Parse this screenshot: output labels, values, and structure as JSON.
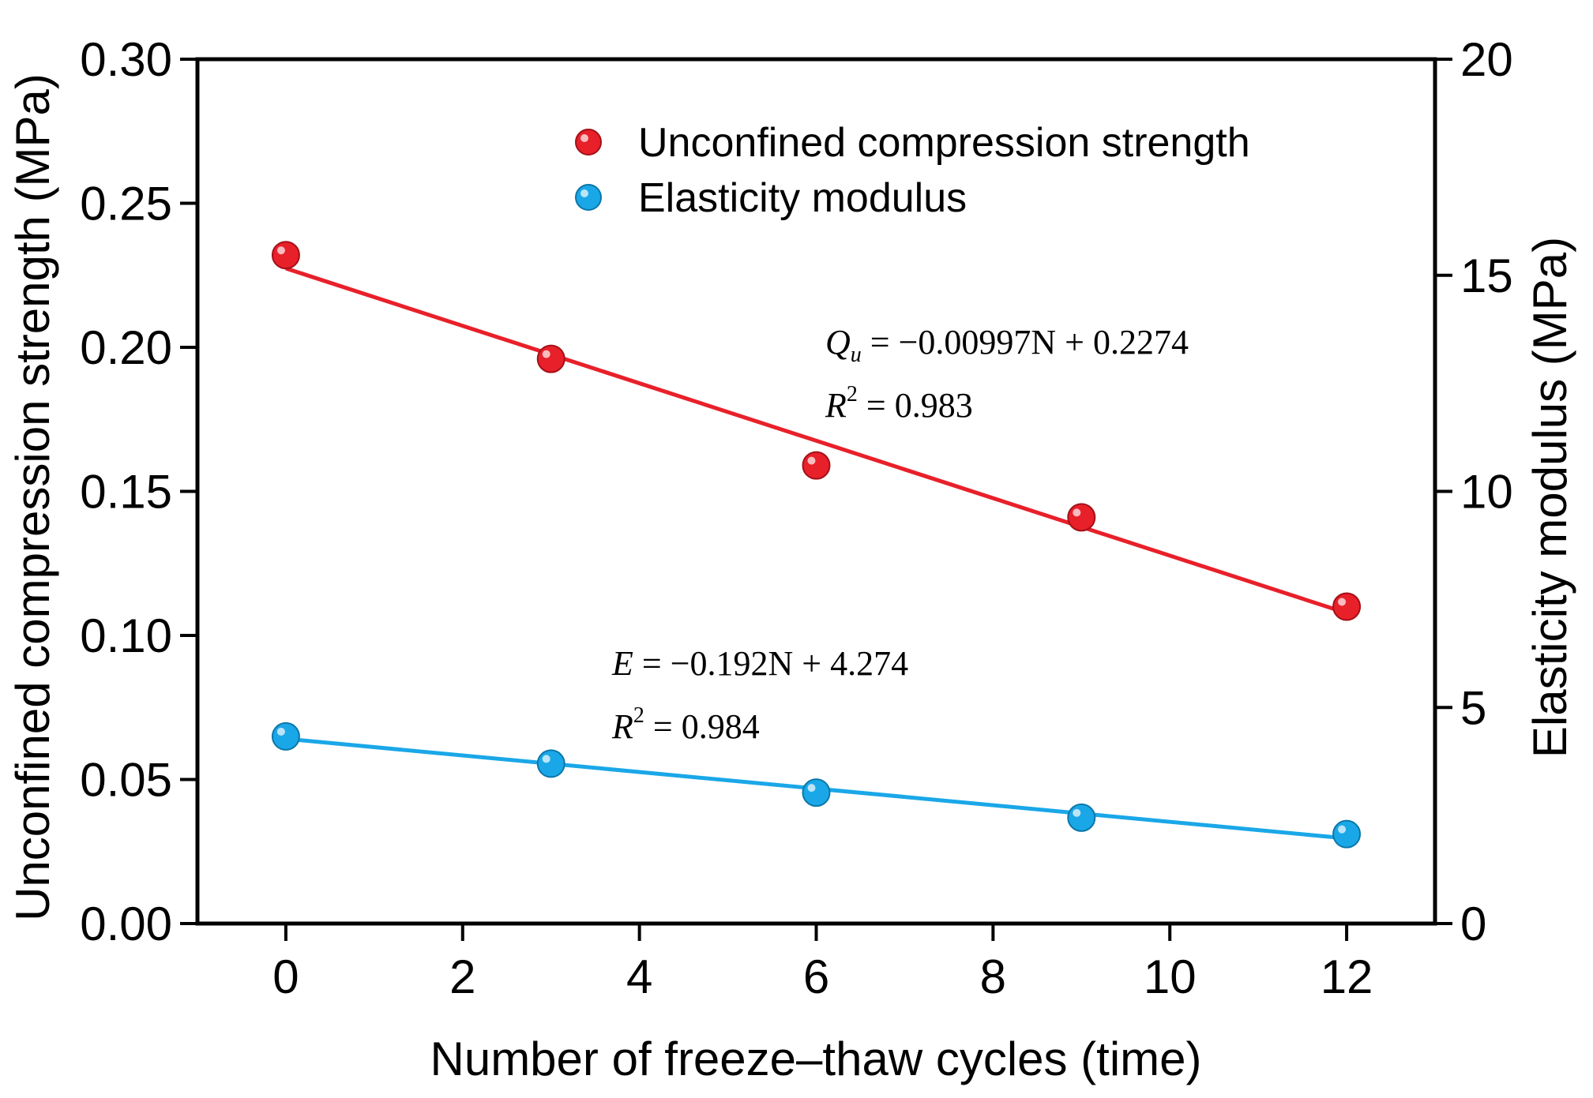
{
  "chart_data": {
    "type": "scatter",
    "x": [
      0,
      3,
      6,
      9,
      12
    ],
    "xlabel": "Number of freeze–thaw cycles (time)",
    "ylabel_left": "Unconfined compression strength (MPa)",
    "ylabel_right": "Elasticity modulus (MPa)",
    "xlim": [
      -1,
      13
    ],
    "ylim_left": [
      0,
      0.3
    ],
    "ylim_right": [
      0,
      20
    ],
    "x_ticks": [
      0,
      2,
      4,
      6,
      8,
      10,
      12
    ],
    "x_tick_labels": [
      "0",
      "2",
      "4",
      "6",
      "8",
      "10",
      "12"
    ],
    "y_left_ticks": [
      0,
      0.05,
      0.1,
      0.15,
      0.2,
      0.25,
      0.3
    ],
    "y_left_tick_labels": [
      "0.00",
      "0.05",
      "0.10",
      "0.15",
      "0.20",
      "0.25",
      "0.30"
    ],
    "y_right_ticks": [
      0,
      5,
      10,
      15,
      20
    ],
    "y_right_tick_labels": [
      "0",
      "5",
      "10",
      "15",
      "20"
    ],
    "legend_position": "top-center",
    "series": [
      {
        "name": "Unconfined compression strength",
        "axis": "left",
        "color": "#e8202a",
        "values": [
          0.232,
          0.196,
          0.159,
          0.141,
          0.11
        ],
        "fit": {
          "slope": -0.00997,
          "intercept": 0.2274
        },
        "equation": {
          "lhs": "Q",
          "sub": "u",
          "rhs": " = −0.00997N + 0.2274",
          "r2_label": "R",
          "r2_sup": "2",
          "r2_value": " = 0.983"
        }
      },
      {
        "name": "Elasticity modulus",
        "axis": "right",
        "color": "#1aa7e8",
        "values": [
          4.33,
          3.7,
          3.03,
          2.45,
          2.07
        ],
        "fit": {
          "slope": -0.192,
          "intercept": 4.274
        },
        "equation": {
          "lhs": "E",
          "sub": "",
          "rhs": " = −0.192N + 4.274",
          "r2_label": "R",
          "r2_sup": "2",
          "r2_value": " = 0.984"
        }
      }
    ]
  }
}
